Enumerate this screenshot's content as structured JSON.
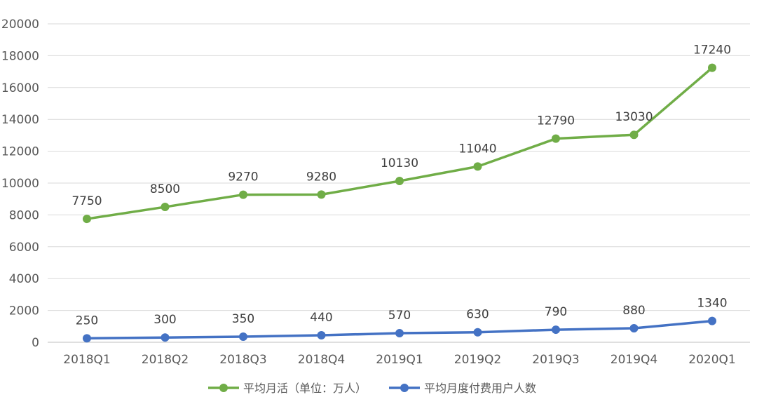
{
  "chart_data": {
    "type": "line",
    "categories": [
      "2018Q1",
      "2018Q2",
      "2018Q3",
      "2018Q4",
      "2019Q1",
      "2019Q2",
      "2019Q3",
      "2019Q4",
      "2020Q1"
    ],
    "ylim": [
      0,
      20000
    ],
    "yticks": [
      0,
      2000,
      4000,
      6000,
      8000,
      10000,
      12000,
      14000,
      16000,
      18000,
      20000
    ],
    "grid": true,
    "legend_position": "bottom",
    "series": [
      {
        "name": "平均月活（单位：万人）",
        "color": "#70ad47",
        "values": [
          7750,
          8500,
          9270,
          9280,
          10130,
          11040,
          12790,
          13030,
          17240
        ]
      },
      {
        "name": "平均月度付费用户人数",
        "color": "#4472c4",
        "values": [
          250,
          300,
          350,
          440,
          570,
          630,
          790,
          880,
          1340
        ]
      }
    ]
  }
}
